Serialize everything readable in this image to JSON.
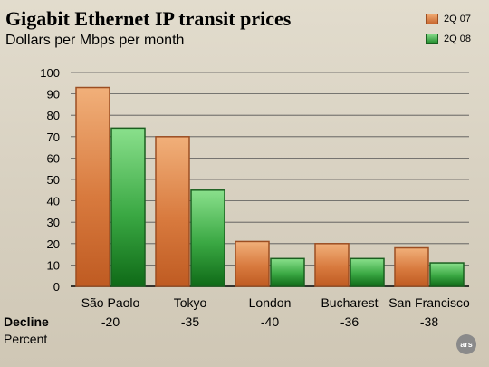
{
  "chart_data": {
    "type": "bar",
    "title": "Gigabit Ethernet IP transit prices",
    "subtitle": "Dollars per Mbps per month",
    "categories": [
      "São Paolo",
      "Tokyo",
      "London",
      "Bucharest",
      "San Francisco"
    ],
    "series": [
      {
        "name": "2Q 07",
        "values": [
          93,
          70,
          21,
          20,
          18
        ],
        "color": "#c8672f"
      },
      {
        "name": "2Q 08",
        "values": [
          74,
          45,
          13,
          13,
          11
        ],
        "color": "#1f8a2a"
      }
    ],
    "y_ticks": [
      "0",
      "10",
      "20",
      "30",
      "40",
      "50",
      "60",
      "70",
      "80",
      "90",
      "100"
    ],
    "ylim": [
      0,
      100
    ],
    "grid": true,
    "legend_position": "top-right"
  },
  "decline": {
    "heading": "Decline",
    "subheading": "Percent",
    "values": [
      "-20",
      "-35",
      "-40",
      "-36",
      "-38"
    ]
  },
  "badge": "ars"
}
